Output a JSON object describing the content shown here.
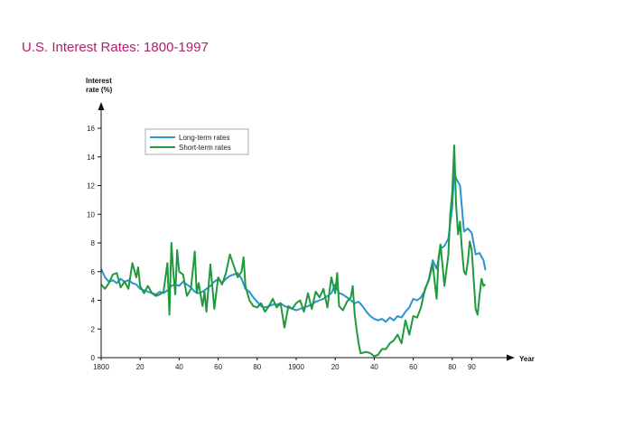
{
  "title": "U.S. Interest Rates: 1800-1997",
  "chart_data": {
    "type": "line",
    "title": "U.S. Interest Rates: 1800-1997",
    "ylabel_line1": "Interest",
    "ylabel_line2": "rate (%)",
    "xlabel": "Year",
    "xlim": [
      1800,
      2000
    ],
    "ylim": [
      0,
      16
    ],
    "grid": false,
    "legend_position": "top-left",
    "x_ticks": [
      1800,
      1820,
      1840,
      1860,
      1880,
      1900,
      1920,
      1940,
      1960,
      1980,
      1990
    ],
    "x_tick_labels": [
      "1800",
      "20",
      "40",
      "60",
      "80",
      "1900",
      "20",
      "40",
      "60",
      "80",
      "90"
    ],
    "y_ticks": [
      0,
      2,
      4,
      6,
      8,
      10,
      12,
      14,
      16
    ],
    "y_tick_labels": [
      "0",
      "2",
      "4",
      "6",
      "8",
      "10",
      "12",
      "14",
      "16"
    ],
    "series": [
      {
        "name": "Long-term rates",
        "color": "#2a93d0",
        "points": [
          [
            1800,
            6.2
          ],
          [
            1802,
            5.6
          ],
          [
            1804,
            5.3
          ],
          [
            1806,
            5.4
          ],
          [
            1808,
            5.2
          ],
          [
            1810,
            5.5
          ],
          [
            1812,
            5.3
          ],
          [
            1814,
            5.4
          ],
          [
            1816,
            5.2
          ],
          [
            1818,
            5.1
          ],
          [
            1820,
            4.8
          ],
          [
            1822,
            4.7
          ],
          [
            1824,
            4.6
          ],
          [
            1826,
            4.5
          ],
          [
            1828,
            4.4
          ],
          [
            1830,
            4.6
          ],
          [
            1832,
            4.5
          ],
          [
            1834,
            4.7
          ],
          [
            1836,
            5.0
          ],
          [
            1838,
            5.1
          ],
          [
            1840,
            5.0
          ],
          [
            1842,
            5.3
          ],
          [
            1844,
            5.1
          ],
          [
            1846,
            4.9
          ],
          [
            1848,
            4.6
          ],
          [
            1850,
            4.5
          ],
          [
            1852,
            4.6
          ],
          [
            1854,
            4.8
          ],
          [
            1856,
            5.0
          ],
          [
            1858,
            5.3
          ],
          [
            1860,
            5.5
          ],
          [
            1862,
            5.2
          ],
          [
            1864,
            5.5
          ],
          [
            1866,
            5.7
          ],
          [
            1868,
            5.8
          ],
          [
            1870,
            5.9
          ],
          [
            1872,
            5.5
          ],
          [
            1874,
            4.8
          ],
          [
            1876,
            4.6
          ],
          [
            1878,
            4.2
          ],
          [
            1880,
            3.9
          ],
          [
            1882,
            3.6
          ],
          [
            1884,
            3.5
          ],
          [
            1886,
            3.6
          ],
          [
            1888,
            3.7
          ],
          [
            1890,
            3.7
          ],
          [
            1892,
            3.8
          ],
          [
            1894,
            3.6
          ],
          [
            1896,
            3.5
          ],
          [
            1898,
            3.4
          ],
          [
            1900,
            3.3
          ],
          [
            1902,
            3.4
          ],
          [
            1904,
            3.5
          ],
          [
            1906,
            3.6
          ],
          [
            1908,
            3.7
          ],
          [
            1910,
            3.9
          ],
          [
            1912,
            4.0
          ],
          [
            1914,
            4.1
          ],
          [
            1916,
            4.3
          ],
          [
            1918,
            4.5
          ],
          [
            1920,
            5.1
          ],
          [
            1922,
            4.5
          ],
          [
            1924,
            4.4
          ],
          [
            1926,
            4.2
          ],
          [
            1928,
            4.0
          ],
          [
            1930,
            3.8
          ],
          [
            1932,
            3.9
          ],
          [
            1934,
            3.6
          ],
          [
            1936,
            3.2
          ],
          [
            1938,
            2.9
          ],
          [
            1940,
            2.7
          ],
          [
            1942,
            2.6
          ],
          [
            1944,
            2.7
          ],
          [
            1946,
            2.5
          ],
          [
            1948,
            2.8
          ],
          [
            1950,
            2.6
          ],
          [
            1952,
            2.9
          ],
          [
            1954,
            2.8
          ],
          [
            1956,
            3.2
          ],
          [
            1958,
            3.5
          ],
          [
            1960,
            4.1
          ],
          [
            1962,
            4.0
          ],
          [
            1964,
            4.2
          ],
          [
            1966,
            4.7
          ],
          [
            1968,
            5.5
          ],
          [
            1970,
            6.8
          ],
          [
            1972,
            6.2
          ],
          [
            1974,
            7.6
          ],
          [
            1976,
            7.8
          ],
          [
            1978,
            8.3
          ],
          [
            1980,
            10.5
          ],
          [
            1981,
            13.0
          ],
          [
            1982,
            12.5
          ],
          [
            1984,
            12.0
          ],
          [
            1986,
            8.8
          ],
          [
            1988,
            9.0
          ],
          [
            1990,
            8.7
          ],
          [
            1992,
            7.2
          ],
          [
            1994,
            7.3
          ],
          [
            1996,
            6.8
          ],
          [
            1997,
            6.1
          ]
        ]
      },
      {
        "name": "Short-term rates",
        "color": "#1e9a3c",
        "points": [
          [
            1800,
            5.1
          ],
          [
            1802,
            4.8
          ],
          [
            1804,
            5.2
          ],
          [
            1806,
            5.8
          ],
          [
            1808,
            5.9
          ],
          [
            1810,
            4.9
          ],
          [
            1812,
            5.3
          ],
          [
            1814,
            4.8
          ],
          [
            1816,
            6.6
          ],
          [
            1818,
            5.6
          ],
          [
            1819,
            6.3
          ],
          [
            1820,
            5.0
          ],
          [
            1822,
            4.5
          ],
          [
            1824,
            5.0
          ],
          [
            1826,
            4.5
          ],
          [
            1828,
            4.3
          ],
          [
            1830,
            4.4
          ],
          [
            1832,
            4.6
          ],
          [
            1834,
            6.6
          ],
          [
            1835,
            3.0
          ],
          [
            1836,
            8.0
          ],
          [
            1837,
            6.0
          ],
          [
            1838,
            4.4
          ],
          [
            1839,
            7.5
          ],
          [
            1840,
            6.0
          ],
          [
            1842,
            5.8
          ],
          [
            1844,
            4.3
          ],
          [
            1846,
            4.8
          ],
          [
            1848,
            7.4
          ],
          [
            1849,
            4.5
          ],
          [
            1850,
            5.2
          ],
          [
            1852,
            3.6
          ],
          [
            1853,
            4.6
          ],
          [
            1854,
            3.2
          ],
          [
            1856,
            6.5
          ],
          [
            1858,
            3.4
          ],
          [
            1860,
            5.6
          ],
          [
            1862,
            5.1
          ],
          [
            1864,
            5.9
          ],
          [
            1866,
            7.2
          ],
          [
            1868,
            6.4
          ],
          [
            1870,
            5.6
          ],
          [
            1872,
            6.0
          ],
          [
            1873,
            7.0
          ],
          [
            1874,
            5.0
          ],
          [
            1876,
            4.0
          ],
          [
            1878,
            3.6
          ],
          [
            1880,
            3.5
          ],
          [
            1882,
            3.8
          ],
          [
            1884,
            3.2
          ],
          [
            1886,
            3.6
          ],
          [
            1888,
            4.1
          ],
          [
            1890,
            3.5
          ],
          [
            1892,
            3.8
          ],
          [
            1894,
            2.1
          ],
          [
            1896,
            3.6
          ],
          [
            1898,
            3.4
          ],
          [
            1900,
            3.8
          ],
          [
            1902,
            4.0
          ],
          [
            1904,
            3.2
          ],
          [
            1906,
            4.5
          ],
          [
            1908,
            3.4
          ],
          [
            1910,
            4.6
          ],
          [
            1912,
            4.2
          ],
          [
            1914,
            4.8
          ],
          [
            1916,
            3.5
          ],
          [
            1918,
            5.6
          ],
          [
            1920,
            4.5
          ],
          [
            1921,
            5.9
          ],
          [
            1922,
            3.6
          ],
          [
            1924,
            3.3
          ],
          [
            1926,
            3.9
          ],
          [
            1928,
            4.2
          ],
          [
            1929,
            5.0
          ],
          [
            1930,
            3.0
          ],
          [
            1931,
            1.9
          ],
          [
            1932,
            1.0
          ],
          [
            1933,
            0.3
          ],
          [
            1936,
            0.4
          ],
          [
            1938,
            0.3
          ],
          [
            1940,
            0.1
          ],
          [
            1942,
            0.2
          ],
          [
            1944,
            0.6
          ],
          [
            1946,
            0.6
          ],
          [
            1948,
            1.0
          ],
          [
            1950,
            1.2
          ],
          [
            1952,
            1.6
          ],
          [
            1954,
            1.0
          ],
          [
            1956,
            2.6
          ],
          [
            1958,
            1.6
          ],
          [
            1960,
            2.9
          ],
          [
            1962,
            2.8
          ],
          [
            1964,
            3.5
          ],
          [
            1966,
            4.8
          ],
          [
            1968,
            5.4
          ],
          [
            1970,
            6.5
          ],
          [
            1972,
            4.1
          ],
          [
            1973,
            7.0
          ],
          [
            1974,
            7.9
          ],
          [
            1976,
            5.0
          ],
          [
            1978,
            7.2
          ],
          [
            1979,
            10.0
          ],
          [
            1980,
            11.5
          ],
          [
            1981,
            14.8
          ],
          [
            1982,
            10.6
          ],
          [
            1983,
            8.6
          ],
          [
            1984,
            9.5
          ],
          [
            1985,
            7.5
          ],
          [
            1986,
            6.0
          ],
          [
            1987,
            5.8
          ],
          [
            1988,
            6.7
          ],
          [
            1989,
            8.1
          ],
          [
            1990,
            7.5
          ],
          [
            1991,
            5.4
          ],
          [
            1992,
            3.4
          ],
          [
            1993,
            3.0
          ],
          [
            1994,
            4.3
          ],
          [
            1995,
            5.5
          ],
          [
            1996,
            5.0
          ],
          [
            1997,
            5.1
          ]
        ]
      }
    ]
  }
}
